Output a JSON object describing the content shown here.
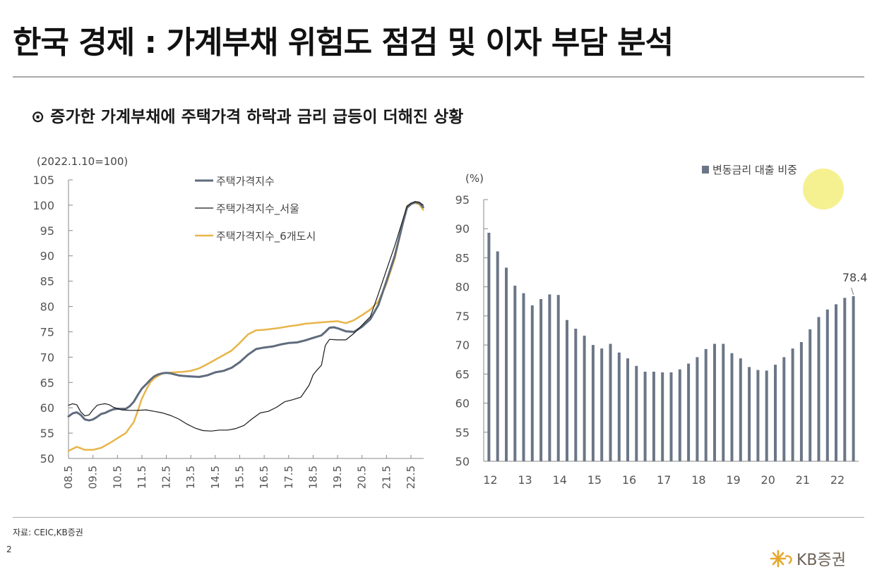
{
  "slide": {
    "title": "한국 경제 : 가계부채 위험도 점검 및 이자 부담 분석",
    "subtitle": "⊙ 증가한 가계부채에 주택가격 하락과 금리 급등이 더해진 상황",
    "source": "자료: CEIC,KB증권",
    "page_number": "2",
    "logo_text": "KB증권",
    "logo_icon": "kb-star-icon"
  },
  "chart_data": [
    {
      "type": "line",
      "unit_label": "(2022.1.10=100)",
      "ylim": [
        50,
        105
      ],
      "yticks": [
        50,
        55,
        60,
        65,
        70,
        75,
        80,
        85,
        90,
        95,
        100,
        105
      ],
      "xticks": [
        "08.5",
        "09.5",
        "10.5",
        "11.5",
        "12.5",
        "13.5",
        "14.5",
        "15.5",
        "16.5",
        "17.5",
        "18.5",
        "19.5",
        "20.5",
        "21.5",
        "22.5"
      ],
      "xrange": [
        2008.33,
        2022.85
      ],
      "legend_position": "top-center",
      "series": [
        {
          "name": "주택가격지수",
          "color": "#5f6b7d",
          "width": 3,
          "points": [
            [
              2008.33,
              58.3
            ],
            [
              2008.5,
              58.9
            ],
            [
              2008.67,
              59.1
            ],
            [
              2008.83,
              58.6
            ],
            [
              2009.0,
              57.7
            ],
            [
              2009.17,
              57.5
            ],
            [
              2009.33,
              57.7
            ],
            [
              2009.5,
              58.2
            ],
            [
              2009.67,
              58.8
            ],
            [
              2009.83,
              59.0
            ],
            [
              2010.0,
              59.4
            ],
            [
              2010.17,
              59.7
            ],
            [
              2010.33,
              59.8
            ],
            [
              2010.5,
              59.8
            ],
            [
              2010.67,
              59.8
            ],
            [
              2010.83,
              60.3
            ],
            [
              2011.0,
              61.2
            ],
            [
              2011.17,
              62.6
            ],
            [
              2011.33,
              63.8
            ],
            [
              2011.5,
              64.6
            ],
            [
              2011.67,
              65.5
            ],
            [
              2011.83,
              66.2
            ],
            [
              2012.0,
              66.6
            ],
            [
              2012.17,
              66.8
            ],
            [
              2012.33,
              66.9
            ],
            [
              2012.5,
              66.8
            ],
            [
              2012.67,
              66.6
            ],
            [
              2012.83,
              66.4
            ],
            [
              2013.0,
              66.3
            ],
            [
              2013.33,
              66.2
            ],
            [
              2013.67,
              66.1
            ],
            [
              2014.0,
              66.4
            ],
            [
              2014.33,
              67.0
            ],
            [
              2014.67,
              67.3
            ],
            [
              2015.0,
              67.9
            ],
            [
              2015.33,
              69.0
            ],
            [
              2015.67,
              70.5
            ],
            [
              2016.0,
              71.6
            ],
            [
              2016.33,
              71.9
            ],
            [
              2016.67,
              72.1
            ],
            [
              2017.0,
              72.5
            ],
            [
              2017.33,
              72.8
            ],
            [
              2017.67,
              72.9
            ],
            [
              2018.0,
              73.3
            ],
            [
              2018.33,
              73.8
            ],
            [
              2018.67,
              74.3
            ],
            [
              2018.83,
              75.0
            ],
            [
              2019.0,
              75.8
            ],
            [
              2019.17,
              75.9
            ],
            [
              2019.33,
              75.7
            ],
            [
              2019.67,
              75.1
            ],
            [
              2020.0,
              75.0
            ],
            [
              2020.33,
              76.0
            ],
            [
              2020.67,
              77.5
            ],
            [
              2021.0,
              80.3
            ],
            [
              2021.33,
              85.0
            ],
            [
              2021.67,
              90.0
            ],
            [
              2022.0,
              96.5
            ],
            [
              2022.17,
              99.5
            ],
            [
              2022.33,
              100.2
            ],
            [
              2022.5,
              100.6
            ],
            [
              2022.67,
              100.4
            ],
            [
              2022.83,
              99.6
            ]
          ]
        },
        {
          "name": "주택가격지수_서울",
          "color": "#1a1a1a",
          "width": 1.2,
          "points": [
            [
              2008.33,
              60.5
            ],
            [
              2008.5,
              60.8
            ],
            [
              2008.67,
              60.6
            ],
            [
              2008.83,
              59.2
            ],
            [
              2009.0,
              58.4
            ],
            [
              2009.17,
              58.6
            ],
            [
              2009.33,
              59.6
            ],
            [
              2009.5,
              60.5
            ],
            [
              2009.67,
              60.7
            ],
            [
              2009.83,
              60.8
            ],
            [
              2010.0,
              60.6
            ],
            [
              2010.17,
              60.1
            ],
            [
              2010.5,
              59.6
            ],
            [
              2010.83,
              59.5
            ],
            [
              2011.17,
              59.5
            ],
            [
              2011.5,
              59.6
            ],
            [
              2011.83,
              59.3
            ],
            [
              2012.17,
              59.0
            ],
            [
              2012.5,
              58.5
            ],
            [
              2012.83,
              57.8
            ],
            [
              2013.17,
              56.8
            ],
            [
              2013.5,
              56.0
            ],
            [
              2013.83,
              55.5
            ],
            [
              2014.17,
              55.4
            ],
            [
              2014.5,
              55.6
            ],
            [
              2014.83,
              55.6
            ],
            [
              2015.17,
              55.9
            ],
            [
              2015.5,
              56.5
            ],
            [
              2015.83,
              57.8
            ],
            [
              2016.17,
              59.0
            ],
            [
              2016.5,
              59.3
            ],
            [
              2016.83,
              60.1
            ],
            [
              2017.17,
              61.2
            ],
            [
              2017.5,
              61.6
            ],
            [
              2017.83,
              62.1
            ],
            [
              2018.17,
              64.5
            ],
            [
              2018.33,
              66.5
            ],
            [
              2018.5,
              67.5
            ],
            [
              2018.67,
              68.4
            ],
            [
              2018.83,
              72.3
            ],
            [
              2019.0,
              73.5
            ],
            [
              2019.33,
              73.4
            ],
            [
              2019.67,
              73.4
            ],
            [
              2020.0,
              74.7
            ],
            [
              2020.33,
              76.3
            ],
            [
              2020.67,
              78.0
            ],
            [
              2021.0,
              82.5
            ],
            [
              2021.33,
              87.2
            ],
            [
              2021.67,
              92.0
            ],
            [
              2022.0,
              97.2
            ],
            [
              2022.17,
              99.8
            ],
            [
              2022.33,
              100.4
            ],
            [
              2022.5,
              100.7
            ],
            [
              2022.67,
              100.6
            ],
            [
              2022.83,
              100.0
            ]
          ]
        },
        {
          "name": "주택가격지수_6개도시",
          "color": "#e8b54a",
          "width": 2.5,
          "points": [
            [
              2008.33,
              51.5
            ],
            [
              2008.5,
              51.9
            ],
            [
              2008.67,
              52.3
            ],
            [
              2008.83,
              52.0
            ],
            [
              2009.0,
              51.7
            ],
            [
              2009.33,
              51.7
            ],
            [
              2009.67,
              52.1
            ],
            [
              2010.0,
              53.0
            ],
            [
              2010.33,
              54.0
            ],
            [
              2010.67,
              55.0
            ],
            [
              2011.0,
              57.2
            ],
            [
              2011.17,
              59.5
            ],
            [
              2011.33,
              61.8
            ],
            [
              2011.5,
              63.5
            ],
            [
              2011.67,
              65.0
            ],
            [
              2011.83,
              65.8
            ],
            [
              2012.0,
              66.3
            ],
            [
              2012.17,
              66.8
            ],
            [
              2012.33,
              66.9
            ],
            [
              2012.67,
              67.0
            ],
            [
              2013.0,
              67.1
            ],
            [
              2013.33,
              67.3
            ],
            [
              2013.67,
              67.8
            ],
            [
              2014.0,
              68.6
            ],
            [
              2014.33,
              69.5
            ],
            [
              2014.67,
              70.4
            ],
            [
              2015.0,
              71.3
            ],
            [
              2015.33,
              72.8
            ],
            [
              2015.67,
              74.5
            ],
            [
              2016.0,
              75.3
            ],
            [
              2016.33,
              75.4
            ],
            [
              2016.67,
              75.6
            ],
            [
              2017.0,
              75.8
            ],
            [
              2017.33,
              76.1
            ],
            [
              2017.67,
              76.3
            ],
            [
              2018.0,
              76.6
            ],
            [
              2018.5,
              76.8
            ],
            [
              2019.0,
              77.0
            ],
            [
              2019.33,
              77.1
            ],
            [
              2019.67,
              76.7
            ],
            [
              2020.0,
              77.3
            ],
            [
              2020.33,
              78.3
            ],
            [
              2020.67,
              79.4
            ],
            [
              2021.0,
              81.0
            ],
            [
              2021.33,
              84.5
            ],
            [
              2021.67,
              89.5
            ],
            [
              2022.0,
              96.5
            ],
            [
              2022.17,
              99.8
            ],
            [
              2022.33,
              100.3
            ],
            [
              2022.5,
              100.4
            ],
            [
              2022.67,
              100.2
            ],
            [
              2022.83,
              99.1
            ]
          ]
        }
      ]
    },
    {
      "type": "bar",
      "unit_label": "(%)",
      "ylim": [
        50,
        95
      ],
      "yticks": [
        50,
        55,
        60,
        65,
        70,
        75,
        80,
        85,
        90,
        95
      ],
      "xticks": [
        "12",
        "13",
        "14",
        "15",
        "16",
        "17",
        "18",
        "19",
        "20",
        "21",
        "22"
      ],
      "legend_position": "top-right",
      "series": [
        {
          "name": "변동금리 대출 비중",
          "color": "#6b7686",
          "values": [
            89.3,
            86.1,
            83.3,
            80.2,
            78.9,
            76.8,
            77.9,
            78.7,
            78.6,
            74.3,
            72.8,
            71.6,
            70.0,
            69.4,
            70.2,
            68.7,
            67.7,
            66.4,
            65.4,
            65.4,
            65.3,
            65.3,
            65.8,
            66.8,
            67.9,
            69.3,
            70.2,
            70.2,
            68.6,
            67.7,
            66.2,
            65.7,
            65.6,
            66.6,
            67.9,
            69.4,
            70.5,
            72.7,
            74.8,
            76.1,
            77.0,
            78.1,
            78.4
          ]
        }
      ],
      "annotation": "78.4"
    }
  ]
}
